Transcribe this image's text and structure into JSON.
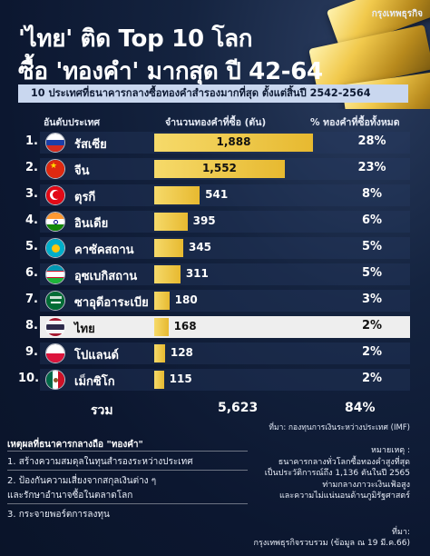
{
  "brand": "กรุงเทพธุรกิจ",
  "title_line1": "'ไทย' ติด Top 10 โลก",
  "title_line2": "ซื้อ 'ทองคำ' มากสุด ปี 42-64",
  "subtitle": "10 ประเทศที่ธนาคารกลางซื้อทองคำสำรองมากที่สุด ตั้งแต่สิ้นปี 2542-2564",
  "col_country": "อันดับประเทศ",
  "col_amount": "จำนวนทองคำที่ซื้อ (ตัน)",
  "col_pct": "% ทองคำที่ซื้อทั้งหมด",
  "rows": [
    {
      "rank": "1.",
      "name": "รัสเซีย",
      "value_label": "1,888",
      "pct": "28%",
      "flag": "russia-flag"
    },
    {
      "rank": "2.",
      "name": "จีน",
      "value_label": "1,552",
      "pct": "23%",
      "flag": "china-flag"
    },
    {
      "rank": "3.",
      "name": "ตุรกี",
      "value_label": "541",
      "pct": "8%",
      "flag": "turkey-flag"
    },
    {
      "rank": "4.",
      "name": "อินเดีย",
      "value_label": "395",
      "pct": "6%",
      "flag": "india-flag"
    },
    {
      "rank": "5.",
      "name": "คาซัคสถาน",
      "value_label": "345",
      "pct": "5%",
      "flag": "kazakhstan-flag"
    },
    {
      "rank": "6.",
      "name": "อุซเบกิสถาน",
      "value_label": "311",
      "pct": "5%",
      "flag": "uzbekistan-flag"
    },
    {
      "rank": "7.",
      "name": "ซาอุดีอาระเบีย",
      "value_label": "180",
      "pct": "3%",
      "flag": "saudi-flag"
    },
    {
      "rank": "8.",
      "name": "ไทย",
      "value_label": "168",
      "pct": "2%",
      "flag": "thailand-flag"
    },
    {
      "rank": "9.",
      "name": "โปแลนด์",
      "value_label": "128",
      "pct": "2%",
      "flag": "poland-flag"
    },
    {
      "rank": "10.",
      "name": "เม็กซิโก",
      "value_label": "115",
      "pct": "2%",
      "flag": "mexico-flag"
    }
  ],
  "total_label": "รวม",
  "total_value": "5,623",
  "total_pct": "84%",
  "source": "ที่มา: กองทุนการเงินระหว่างประเทศ (IMF)",
  "reasons_title": "เหตุผลที่ธนาคารกลางถือ \"ทองคำ\"",
  "reasons": [
    "1. สร้างความสมดุลในทุนสำรองระหว่างประเทศ",
    "2. ป้องกันความเสี่ยงจากสกุลเงินต่าง ๆ",
    "และรักษาอำนาจซื้อในตลาดโลก",
    "3. กระจายพอร์ตการลงทุน"
  ],
  "note_title": "หมายเหตุ :",
  "notes": [
    "ธนาคารกลางทั่วโลกซื้อทองคำสูงที่สุด",
    "เป็นประวัติการณ์ถึง 1,136 ตันในปี 2565",
    "ท่ามกลางภาวะเงินเฟ้อสูง",
    "และความไม่แน่นอนด้านภูมิรัฐศาสตร์"
  ],
  "footer_source": "ที่มา:",
  "footer_credit": "กรุงเทพธุรกิจรวบรวม (ข้อมูล ณ 19 มี.ค.66)",
  "colors": {
    "bar": "#f1c94c",
    "highlight_row": "#eeeeee",
    "subtitle_bg": "#c9d7ef"
  },
  "chart_data": {
    "type": "bar",
    "orientation": "horizontal",
    "title": "'ไทย' ติด Top 10 โลก ซื้อ 'ทองคำ' มากสุด ปี 42-64",
    "subtitle": "10 ประเทศที่ธนาคารกลางซื้อทองคำสำรองมากที่สุด ตั้งแต่สิ้นปี 2542-2564",
    "categories": [
      "รัสเซีย",
      "จีน",
      "ตุรกี",
      "อินเดีย",
      "คาซัคสถาน",
      "อุซเบกิสถาน",
      "ซาอุดีอาระเบีย",
      "ไทย",
      "โปแลนด์",
      "เม็กซิโก"
    ],
    "values": [
      1888,
      1552,
      541,
      395,
      345,
      311,
      180,
      168,
      128,
      115
    ],
    "percent_of_total": [
      28,
      23,
      8,
      6,
      5,
      5,
      3,
      2,
      2,
      2
    ],
    "value_label": "จำนวนทองคำที่ซื้อ (ตัน)",
    "highlight": "ไทย",
    "total": 5623,
    "total_percent": 84
  }
}
